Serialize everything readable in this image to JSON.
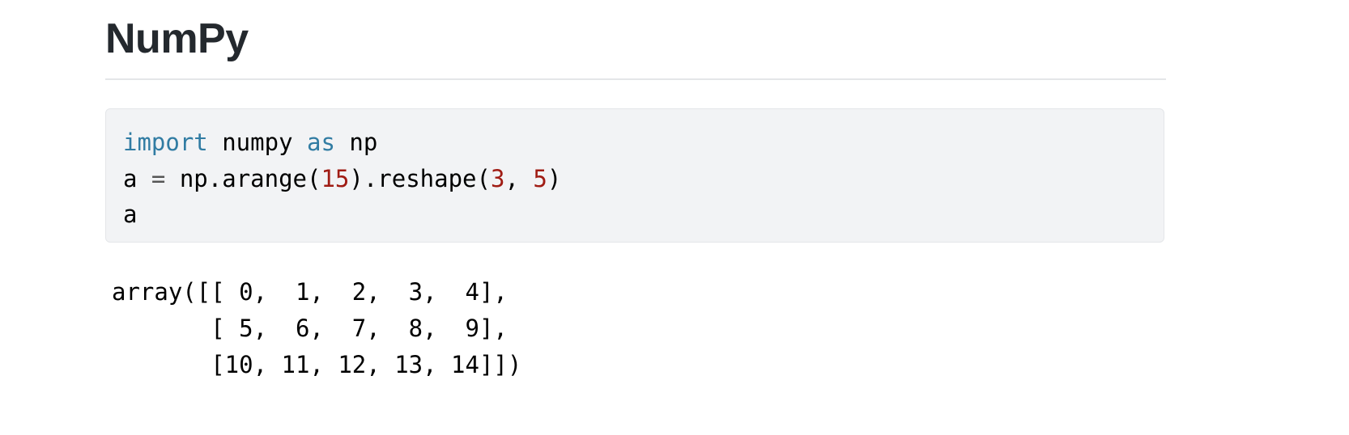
{
  "heading": "NumPy",
  "code_cell": {
    "line1": {
      "kw1": "import",
      "t1": " numpy ",
      "kw2": "as",
      "t2": " np"
    },
    "line2": {
      "t1": "a ",
      "op": "=",
      "t2": " np.arange(",
      "n1": "15",
      "t3": ").reshape(",
      "n2": "3",
      "t4": ", ",
      "n3": "5",
      "t5": ")"
    },
    "line3": "a"
  },
  "output": [
    "array([[ 0,  1,  2,  3,  4],",
    "       [ 5,  6,  7,  8,  9],",
    "       [10, 11, 12, 13, 14]])"
  ],
  "colors": {
    "keyword": "#317ca3",
    "number": "#a01c14",
    "code_bg": "#f2f3f5",
    "heading": "#24292e"
  }
}
